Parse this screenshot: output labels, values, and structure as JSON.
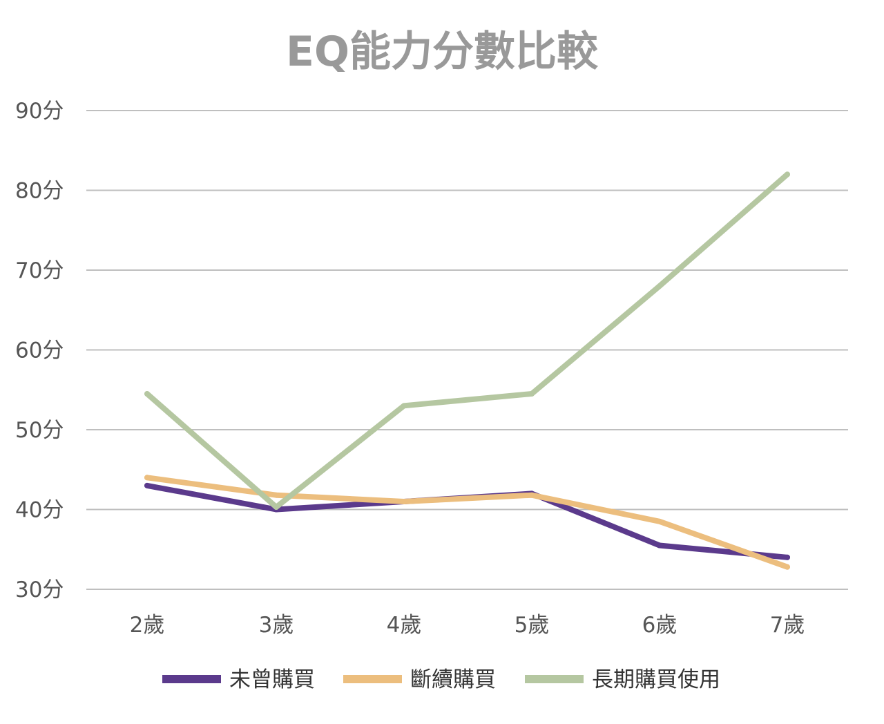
{
  "chart_data": {
    "type": "line",
    "title": "EQ能力分數比較",
    "categories": [
      "2歲",
      "3歲",
      "4歲",
      "5歲",
      "6歲",
      "7歲"
    ],
    "y_ticks": [
      "30分",
      "40分",
      "50分",
      "60分",
      "70分",
      "80分",
      "90分"
    ],
    "ylim": [
      30,
      90
    ],
    "grid": true,
    "legend_position": "bottom",
    "series": [
      {
        "name": "未曾購買",
        "color": "#5b3a8c",
        "values": [
          43,
          40,
          41,
          42,
          35.5,
          34
        ]
      },
      {
        "name": "斷續購買",
        "color": "#ecbe7e",
        "values": [
          44,
          41.8,
          41,
          41.8,
          38.5,
          32.8
        ]
      },
      {
        "name": "長期購買使用",
        "color": "#b5c7a1",
        "values": [
          54.5,
          40.3,
          53,
          54.5,
          68,
          82
        ]
      }
    ]
  }
}
